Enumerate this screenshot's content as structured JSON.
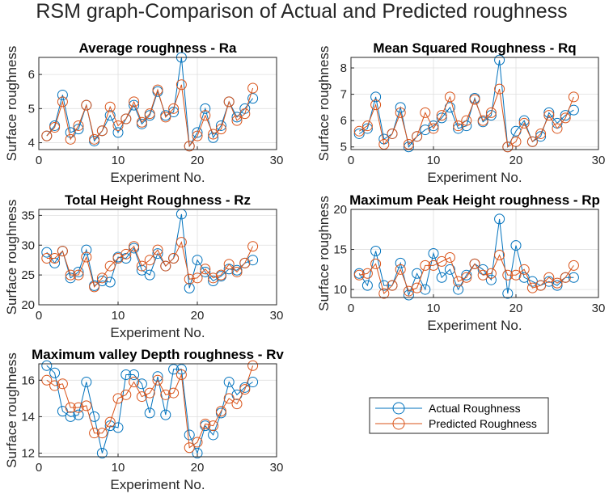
{
  "figure": {
    "title": "RSM graph-Comparison of Actual and Predicted roughness"
  },
  "legend": {
    "entries": [
      {
        "label": "Actual Roughness",
        "color": "#0072BD"
      },
      {
        "label": "Predicted Roughness",
        "color": "#D95319"
      }
    ]
  },
  "chart_data": [
    {
      "type": "line",
      "title": "Average roughness - Ra",
      "xlabel": "Experiment No.",
      "ylabel": "Surface roughness",
      "xlim": [
        0,
        30
      ],
      "ylim": [
        3.8,
        6.5
      ],
      "xticks": [
        0,
        10,
        20,
        30
      ],
      "yticks": [
        4,
        5,
        6
      ],
      "grid": true,
      "x": [
        1,
        2,
        3,
        4,
        5,
        6,
        7,
        8,
        9,
        10,
        11,
        12,
        13,
        14,
        15,
        16,
        17,
        18,
        19,
        20,
        21,
        22,
        23,
        24,
        25,
        26,
        27
      ],
      "series": [
        {
          "name": "Actual Roughness",
          "color": "#0072BD",
          "values": [
            4.2,
            4.5,
            5.4,
            4.3,
            4.4,
            5.1,
            4.05,
            4.35,
            4.8,
            4.3,
            4.7,
            5.1,
            4.55,
            4.8,
            5.5,
            4.8,
            4.9,
            6.5,
            3.9,
            4.3,
            5.0,
            4.15,
            4.5,
            5.2,
            4.75,
            5.0,
            5.3
          ]
        },
        {
          "name": "Predicted Roughness",
          "color": "#D95319",
          "values": [
            4.2,
            4.45,
            5.2,
            4.1,
            4.5,
            5.1,
            4.1,
            4.35,
            5.05,
            4.5,
            4.7,
            5.2,
            4.6,
            4.85,
            5.55,
            4.75,
            5.0,
            5.7,
            3.9,
            4.2,
            4.8,
            4.25,
            4.4,
            5.2,
            4.65,
            4.85,
            5.6
          ]
        }
      ]
    },
    {
      "type": "line",
      "title": "Mean Squared Roughness - Rq",
      "xlabel": "Experiment No.",
      "ylabel": "Surface roughness",
      "xlim": [
        0,
        30
      ],
      "ylim": [
        4.9,
        8.4
      ],
      "xticks": [
        0,
        10,
        20,
        30
      ],
      "yticks": [
        5,
        6,
        7,
        8
      ],
      "grid": true,
      "x": [
        1,
        2,
        3,
        4,
        5,
        6,
        7,
        8,
        9,
        10,
        11,
        12,
        13,
        14,
        15,
        16,
        17,
        18,
        19,
        20,
        21,
        22,
        23,
        24,
        25,
        26,
        27
      ],
      "series": [
        {
          "name": "Actual Roughness",
          "color": "#0072BD",
          "values": [
            5.5,
            5.7,
            6.9,
            5.3,
            5.5,
            6.5,
            5.0,
            5.4,
            5.65,
            5.8,
            6.1,
            6.5,
            5.7,
            5.8,
            6.85,
            5.95,
            6.2,
            8.3,
            5.0,
            5.6,
            6.0,
            5.2,
            5.4,
            6.3,
            5.9,
            6.2,
            6.4
          ]
        },
        {
          "name": "Predicted Roughness",
          "color": "#D95319",
          "values": [
            5.6,
            5.8,
            6.6,
            5.1,
            5.5,
            6.3,
            5.1,
            5.4,
            6.3,
            5.7,
            6.2,
            6.9,
            5.8,
            6.0,
            6.8,
            6.0,
            6.3,
            7.2,
            5.0,
            5.2,
            5.9,
            5.2,
            5.5,
            6.2,
            5.7,
            6.1,
            6.9
          ]
        }
      ]
    },
    {
      "type": "line",
      "title": "Total Height Roughness - Rz",
      "xlabel": "Experiment No.",
      "ylabel": "Surface roughness",
      "xlim": [
        0,
        30
      ],
      "ylim": [
        20,
        36
      ],
      "xticks": [
        0,
        10,
        20,
        30
      ],
      "yticks": [
        20,
        25,
        30,
        35
      ],
      "grid": true,
      "x": [
        1,
        2,
        3,
        4,
        5,
        6,
        7,
        8,
        9,
        10,
        11,
        12,
        13,
        14,
        15,
        16,
        17,
        18,
        19,
        20,
        21,
        22,
        23,
        24,
        25,
        26,
        27
      ],
      "series": [
        {
          "name": "Actual Roughness",
          "color": "#0072BD",
          "values": [
            28.8,
            27.0,
            29.0,
            24.5,
            25.5,
            29.2,
            23.2,
            24.0,
            23.8,
            28.0,
            27.8,
            29.5,
            25.8,
            25.0,
            28.6,
            26.5,
            27.8,
            35.2,
            22.8,
            27.5,
            25.5,
            24.0,
            24.8,
            26.0,
            25.8,
            27.0,
            27.5
          ]
        },
        {
          "name": "Predicted Roughness",
          "color": "#D95319",
          "values": [
            27.8,
            27.8,
            29.0,
            25.0,
            25.0,
            28.0,
            23.0,
            24.5,
            26.5,
            27.8,
            28.5,
            29.8,
            26.5,
            27.5,
            29.2,
            26.5,
            27.8,
            30.5,
            24.3,
            24.5,
            26.0,
            24.5,
            25.0,
            26.8,
            25.5,
            27.0,
            29.8
          ]
        }
      ]
    },
    {
      "type": "line",
      "title": "Maximum Peak Height roughness - Rp",
      "xlabel": "Experiment No.",
      "ylabel": "Surface roughness",
      "xlim": [
        0,
        30
      ],
      "ylim": [
        9,
        20
      ],
      "xticks": [
        0,
        10,
        20,
        30
      ],
      "yticks": [
        10,
        15,
        20
      ],
      "grid": true,
      "x": [
        1,
        2,
        3,
        4,
        5,
        6,
        7,
        8,
        9,
        10,
        11,
        12,
        13,
        14,
        15,
        16,
        17,
        18,
        19,
        20,
        21,
        22,
        23,
        24,
        25,
        26,
        27
      ],
      "series": [
        {
          "name": "Actual Roughness",
          "color": "#0072BD",
          "values": [
            12.0,
            10.5,
            14.8,
            10.5,
            10.5,
            13.3,
            9.3,
            12.0,
            10.0,
            14.5,
            11.5,
            12.5,
            10.0,
            11.8,
            13.2,
            12.5,
            11.2,
            18.8,
            9.5,
            15.5,
            11.5,
            11.0,
            10.5,
            11.0,
            10.5,
            11.5,
            11.5
          ]
        },
        {
          "name": "Predicted Roughness",
          "color": "#D95319",
          "values": [
            11.8,
            12.0,
            13.2,
            9.5,
            10.5,
            12.5,
            9.8,
            10.2,
            13.0,
            13.0,
            13.5,
            14.0,
            11.0,
            11.5,
            13.2,
            11.8,
            12.0,
            14.3,
            11.8,
            11.8,
            12.5,
            10.2,
            10.5,
            11.5,
            10.8,
            11.5,
            13.0
          ]
        }
      ]
    },
    {
      "type": "line",
      "title": "Maximum valley Depth roughness - Rv",
      "xlabel": "Experiment No.",
      "ylabel": "Surface roughness",
      "xlim": [
        0,
        30
      ],
      "ylim": [
        11.8,
        16.9
      ],
      "xticks": [
        0,
        10,
        20,
        30
      ],
      "yticks": [
        12,
        14,
        16
      ],
      "grid": true,
      "x": [
        1,
        2,
        3,
        4,
        5,
        6,
        7,
        8,
        9,
        10,
        11,
        12,
        13,
        14,
        15,
        16,
        17,
        18,
        19,
        20,
        21,
        22,
        23,
        24,
        25,
        26,
        27
      ],
      "series": [
        {
          "name": "Actual Roughness",
          "color": "#0072BD",
          "values": [
            16.8,
            16.4,
            14.3,
            14.0,
            14.1,
            15.9,
            14.0,
            12.0,
            13.5,
            13.4,
            16.3,
            16.3,
            15.8,
            14.2,
            16.2,
            14.1,
            16.6,
            16.6,
            13.0,
            12.0,
            13.5,
            13.0,
            14.2,
            15.9,
            15.2,
            15.6,
            15.9
          ]
        },
        {
          "name": "Predicted Roughness",
          "color": "#D95319",
          "values": [
            16.0,
            15.7,
            15.8,
            14.5,
            14.5,
            14.6,
            13.1,
            13.1,
            13.7,
            15.0,
            15.2,
            15.9,
            15.1,
            15.3,
            16.0,
            15.2,
            15.3,
            16.3,
            12.3,
            12.6,
            13.6,
            13.5,
            14.3,
            15.0,
            14.7,
            15.5,
            16.8
          ]
        }
      ]
    }
  ]
}
